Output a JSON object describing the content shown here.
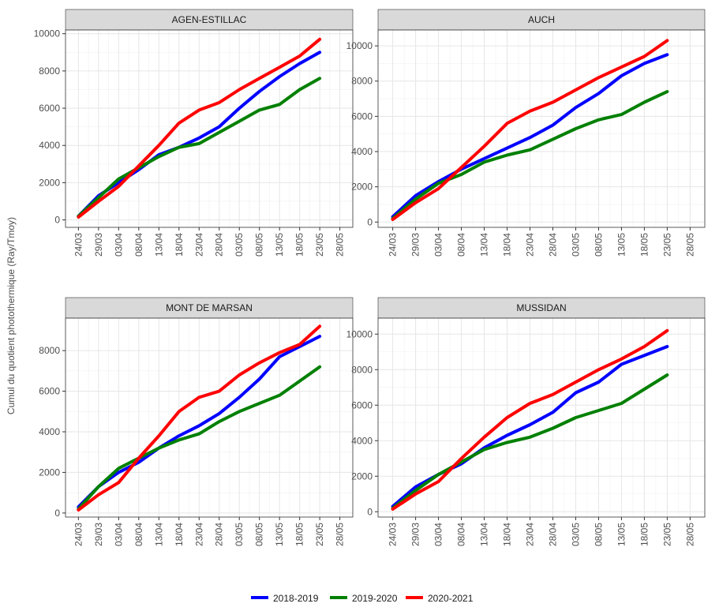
{
  "y_label": "Cumul du quotient photothermique (Ray/Tmoy)",
  "chart_data": [
    {
      "type": "line",
      "title": "AGEN-ESTILLAC",
      "x": [
        "24/03",
        "29/03",
        "03/04",
        "08/04",
        "13/04",
        "18/04",
        "23/04",
        "28/04",
        "03/05",
        "08/05",
        "13/05",
        "18/05",
        "23/05",
        "28/05"
      ],
      "ylim": [
        -400,
        10200
      ],
      "yticks": [
        0,
        2000,
        4000,
        6000,
        8000,
        10000
      ],
      "grid": true,
      "series": [
        {
          "name": "2018-2019",
          "color": "#0000ff",
          "values": [
            200,
            1300,
            2000,
            2700,
            3500,
            3900,
            4400,
            5000,
            6000,
            6900,
            7700,
            8400,
            9000,
            null
          ]
        },
        {
          "name": "2019-2020",
          "color": "#008000",
          "values": [
            200,
            1200,
            2200,
            2800,
            3400,
            3900,
            4100,
            4700,
            5300,
            5900,
            6200,
            7000,
            7600,
            null
          ]
        },
        {
          "name": "2020-2021",
          "color": "#ff0000",
          "values": [
            150,
            1000,
            1800,
            2900,
            4000,
            5200,
            5900,
            6300,
            7000,
            7600,
            8200,
            8800,
            9700,
            null
          ]
        }
      ]
    },
    {
      "type": "line",
      "title": "AUCH",
      "x": [
        "24/03",
        "29/03",
        "03/04",
        "08/04",
        "13/04",
        "18/04",
        "23/04",
        "28/04",
        "03/05",
        "08/05",
        "13/05",
        "18/05",
        "23/05",
        "28/05"
      ],
      "ylim": [
        -300,
        10900
      ],
      "yticks": [
        0,
        2000,
        4000,
        6000,
        8000,
        10000
      ],
      "grid": true,
      "series": [
        {
          "name": "2018-2019",
          "color": "#0000ff",
          "values": [
            300,
            1500,
            2300,
            3000,
            3600,
            4200,
            4800,
            5500,
            6500,
            7300,
            8300,
            9000,
            9500,
            null
          ]
        },
        {
          "name": "2019-2020",
          "color": "#008000",
          "values": [
            200,
            1300,
            2200,
            2700,
            3400,
            3800,
            4100,
            4700,
            5300,
            5800,
            6100,
            6800,
            7400,
            null
          ]
        },
        {
          "name": "2020-2021",
          "color": "#ff0000",
          "values": [
            150,
            1100,
            1900,
            3100,
            4300,
            5600,
            6300,
            6800,
            7500,
            8200,
            8800,
            9400,
            10300,
            null
          ]
        }
      ]
    },
    {
      "type": "line",
      "title": "MONT DE MARSAN",
      "x": [
        "24/03",
        "29/03",
        "03/04",
        "08/04",
        "13/04",
        "18/04",
        "23/04",
        "28/04",
        "03/05",
        "08/05",
        "13/05",
        "18/05",
        "23/05",
        "28/05"
      ],
      "ylim": [
        -200,
        9600
      ],
      "yticks": [
        0,
        2000,
        4000,
        6000,
        8000
      ],
      "grid": true,
      "series": [
        {
          "name": "2018-2019",
          "color": "#0000ff",
          "values": [
            300,
            1300,
            2000,
            2500,
            3200,
            3800,
            4300,
            4900,
            5700,
            6600,
            7700,
            8200,
            8700,
            null
          ]
        },
        {
          "name": "2019-2020",
          "color": "#008000",
          "values": [
            200,
            1300,
            2200,
            2700,
            3200,
            3600,
            3900,
            4500,
            5000,
            5400,
            5800,
            6500,
            7200,
            null
          ]
        },
        {
          "name": "2020-2021",
          "color": "#ff0000",
          "values": [
            150,
            900,
            1500,
            2700,
            3800,
            5000,
            5700,
            6000,
            6800,
            7400,
            7900,
            8300,
            9200,
            null
          ]
        }
      ]
    },
    {
      "type": "line",
      "title": "MUSSIDAN",
      "x": [
        "24/03",
        "29/03",
        "03/04",
        "08/04",
        "13/04",
        "18/04",
        "23/04",
        "28/04",
        "03/05",
        "08/05",
        "13/05",
        "18/05",
        "23/05",
        "28/05"
      ],
      "ylim": [
        -300,
        10900
      ],
      "yticks": [
        0,
        2000,
        4000,
        6000,
        8000,
        10000
      ],
      "grid": true,
      "series": [
        {
          "name": "2018-2019",
          "color": "#0000ff",
          "values": [
            300,
            1400,
            2100,
            2700,
            3600,
            4300,
            4900,
            5600,
            6700,
            7300,
            8300,
            8800,
            9300,
            null
          ]
        },
        {
          "name": "2019-2020",
          "color": "#008000",
          "values": [
            200,
            1200,
            2100,
            2800,
            3500,
            3900,
            4200,
            4700,
            5300,
            5700,
            6100,
            6900,
            7700,
            null
          ]
        },
        {
          "name": "2020-2021",
          "color": "#ff0000",
          "values": [
            150,
            1000,
            1700,
            3000,
            4200,
            5300,
            6100,
            6600,
            7300,
            8000,
            8600,
            9300,
            10200,
            null
          ]
        }
      ]
    }
  ]
}
